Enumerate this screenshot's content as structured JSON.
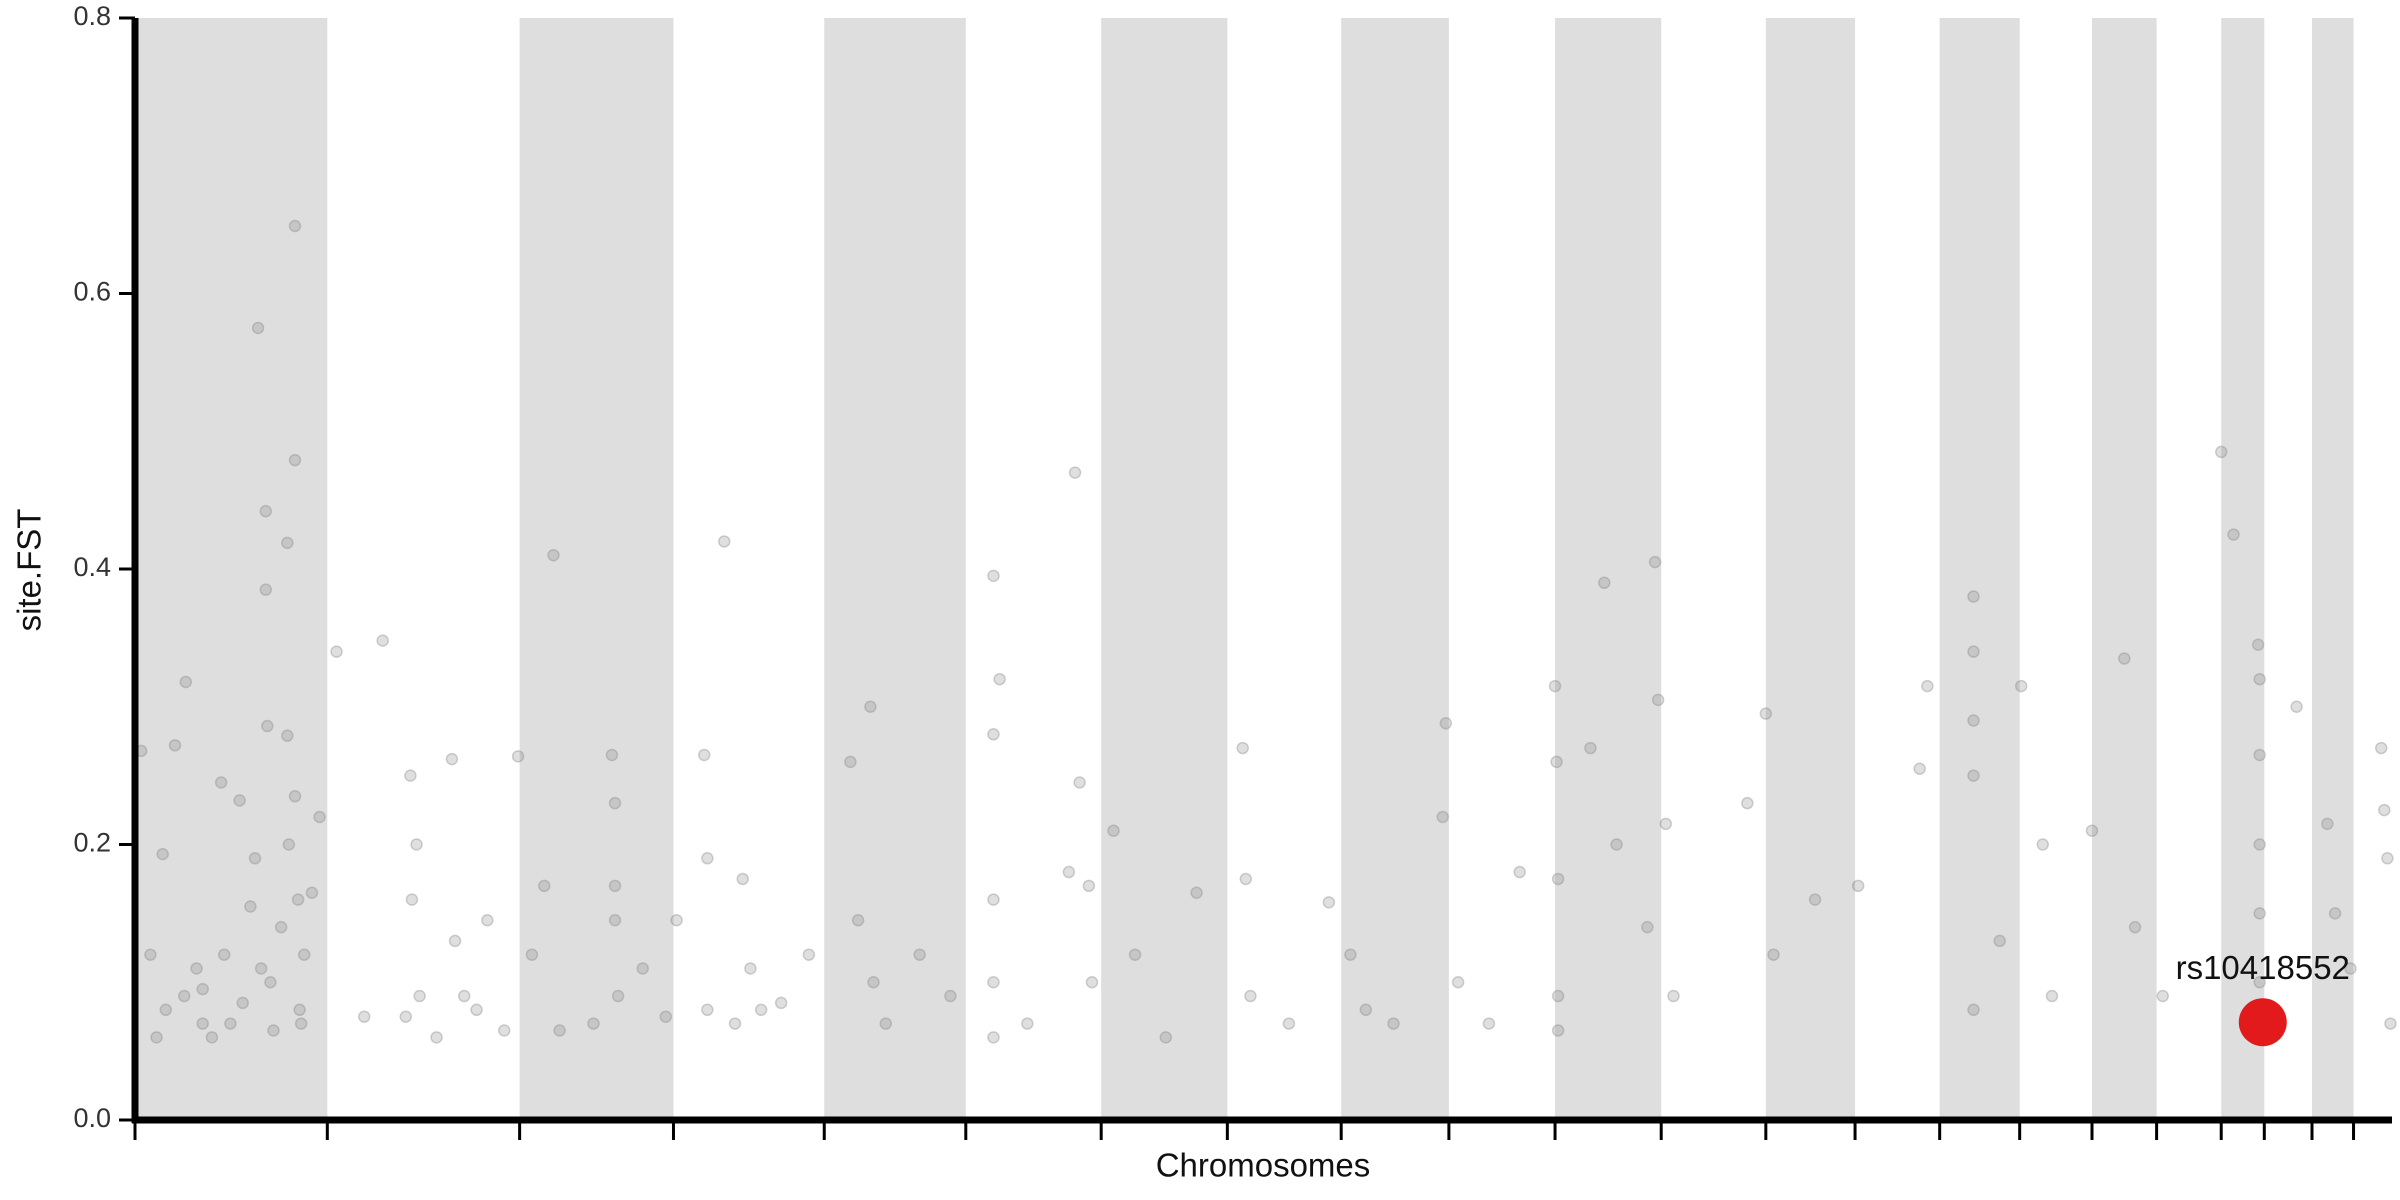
{
  "chart_data": {
    "type": "scatter",
    "xlabel": "Chromosomes",
    "ylabel": "site.FST",
    "xlim": [
      0,
      1467
    ],
    "ylim": [
      0,
      0.8
    ],
    "yticks": [
      {
        "value": 0,
        "label": "0.0"
      },
      0.2,
      0.4,
      0.6,
      0.8
    ],
    "chromosome_boundaries": [
      0,
      125,
      250,
      350,
      448,
      540,
      628,
      710,
      784,
      854,
      923,
      992,
      1060,
      1118,
      1173,
      1225,
      1272,
      1314,
      1356,
      1384,
      1415,
      1442,
      1467
    ],
    "band_color": "#dedede",
    "series": [
      {
        "color": "#808080",
        "x": [
          4,
          10,
          14,
          18,
          20,
          26,
          32,
          33,
          40,
          44,
          44,
          50,
          56,
          58,
          62,
          68,
          70,
          75,
          78,
          80,
          82,
          85,
          85,
          86,
          88,
          90,
          95,
          99,
          99,
          100,
          104,
          104,
          104,
          106,
          107,
          108,
          110,
          115,
          120,
          131,
          149,
          161,
          176,
          179,
          180,
          183,
          185,
          196,
          206,
          208,
          214,
          222,
          229,
          240,
          249,
          258,
          266,
          272,
          276,
          298,
          310,
          312,
          312,
          312,
          314,
          330,
          345,
          352,
          370,
          372,
          372,
          383,
          390,
          395,
          400,
          407,
          420,
          438,
          465,
          470,
          478,
          480,
          488,
          510,
          530,
          558,
          558,
          558,
          558,
          558,
          562,
          580,
          607,
          611,
          614,
          620,
          622,
          636,
          650,
          670,
          690,
          720,
          722,
          725,
          750,
          776,
          790,
          800,
          818,
          852,
          850,
          860,
          880,
          900,
          923,
          924,
          925,
          925,
          925,
          946,
          955,
          963,
          983,
          988,
          990,
          995,
          1000,
          1048,
          1060,
          1065,
          1092,
          1120,
          1160,
          1165,
          1195,
          1195,
          1195,
          1195,
          1195,
          1212,
          1226,
          1240,
          1246,
          1272,
          1293,
          1300,
          1318,
          1356,
          1364,
          1380,
          1381,
          1381,
          1381,
          1381,
          1381,
          1381,
          1405,
          1425,
          1430,
          1440,
          1460,
          1462,
          1464,
          1466
        ],
        "values": [
          0.268,
          0.12,
          0.06,
          0.193,
          0.08,
          0.272,
          0.09,
          0.318,
          0.11,
          0.07,
          0.095,
          0.06,
          0.245,
          0.12,
          0.07,
          0.232,
          0.085,
          0.155,
          0.19,
          0.575,
          0.11,
          0.442,
          0.385,
          0.286,
          0.1,
          0.065,
          0.14,
          0.419,
          0.279,
          0.2,
          0.649,
          0.479,
          0.235,
          0.16,
          0.08,
          0.07,
          0.12,
          0.165,
          0.22,
          0.34,
          0.075,
          0.348,
          0.075,
          0.25,
          0.16,
          0.2,
          0.09,
          0.06,
          0.262,
          0.13,
          0.09,
          0.08,
          0.145,
          0.065,
          0.264,
          0.12,
          0.17,
          0.41,
          0.065,
          0.07,
          0.265,
          0.23,
          0.17,
          0.145,
          0.09,
          0.11,
          0.075,
          0.145,
          0.265,
          0.08,
          0.19,
          0.42,
          0.07,
          0.175,
          0.11,
          0.08,
          0.085,
          0.12,
          0.26,
          0.145,
          0.3,
          0.1,
          0.07,
          0.12,
          0.09,
          0.395,
          0.28,
          0.16,
          0.1,
          0.06,
          0.32,
          0.07,
          0.18,
          0.47,
          0.245,
          0.17,
          0.1,
          0.21,
          0.12,
          0.06,
          0.165,
          0.27,
          0.175,
          0.09,
          0.07,
          0.158,
          0.12,
          0.08,
          0.07,
          0.288,
          0.22,
          0.1,
          0.07,
          0.18,
          0.315,
          0.26,
          0.175,
          0.09,
          0.065,
          0.27,
          0.39,
          0.2,
          0.14,
          0.405,
          0.305,
          0.215,
          0.09,
          0.23,
          0.295,
          0.12,
          0.16,
          0.17,
          0.255,
          0.315,
          0.38,
          0.34,
          0.29,
          0.25,
          0.08,
          0.13,
          0.315,
          0.2,
          0.09,
          0.21,
          0.335,
          0.14,
          0.09,
          0.485,
          0.425,
          0.345,
          0.32,
          0.265,
          0.2,
          0.15,
          0.1,
          0.06,
          0.3,
          0.215,
          0.15,
          0.11,
          0.27,
          0.225,
          0.19,
          0.07
        ]
      }
    ],
    "highlight": {
      "label": "rs10418552",
      "x": 1383,
      "y": 0.071,
      "color": "#e31a1c"
    }
  }
}
